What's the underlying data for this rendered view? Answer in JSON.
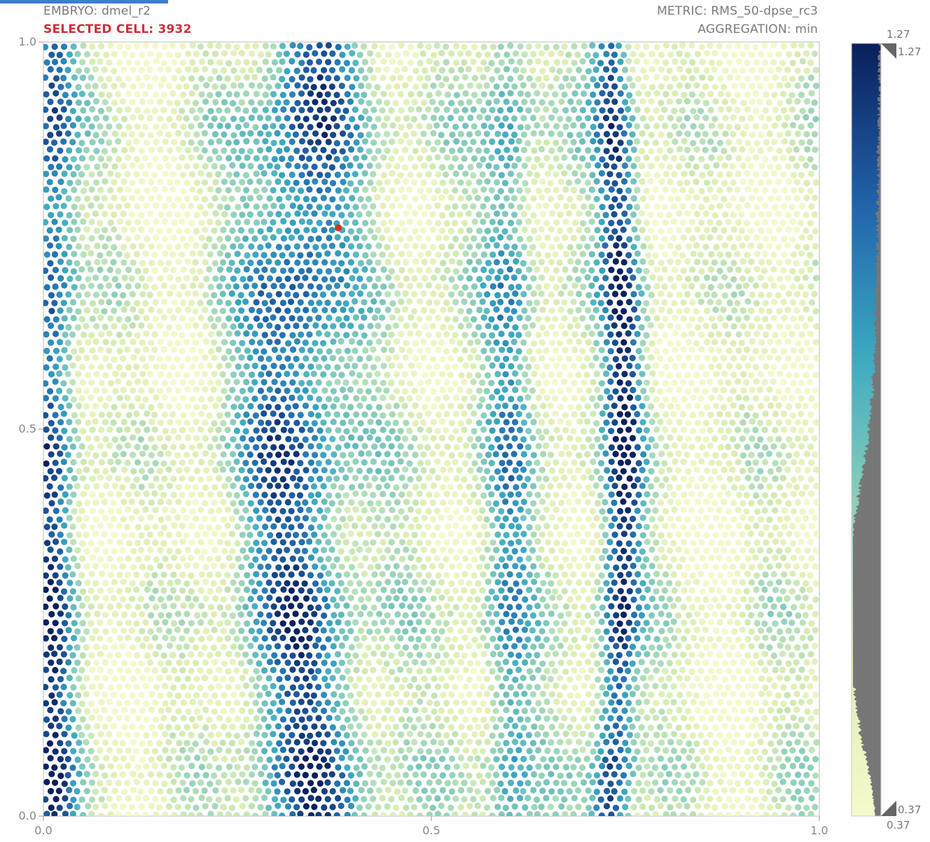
{
  "header": {
    "embryo": "EMBRYO: dmel_r2",
    "selected_cell": "SELECTED CELL: 3932",
    "metric": "METRIC: RMS_50-dpse_rc3",
    "aggregation": "AGGREGATION: min"
  },
  "colors": {
    "low": "#f4f7c6",
    "mid": "#3aa8c0",
    "high": "#081d58",
    "selected": "#d7301f",
    "histogram": "#777777"
  },
  "chart_data": {
    "type": "scatter",
    "title": "",
    "xlabel": "",
    "ylabel": "",
    "xlim": [
      0.0,
      1.0
    ],
    "ylim": [
      0.0,
      1.0
    ],
    "x_ticks": [
      "0.0",
      "0.5",
      "1.0"
    ],
    "y_ticks": [
      "0.0",
      "0.5",
      "1.0"
    ],
    "colorscale": "YlGnBu",
    "color_range": [
      0.37,
      1.27
    ],
    "colorbar": {
      "top_label": "1.27",
      "top_marker_label": "1.27",
      "bottom_label": "0.37",
      "bottom_marker_label": "0.37"
    },
    "selected_cell": {
      "id": 3932,
      "x": 0.38,
      "y": 0.76
    },
    "bands": [
      {
        "x_center": 0.01,
        "width": 0.03,
        "value": 1.15
      },
      {
        "x_center": 0.14,
        "width": 0.07,
        "value": 0.45
      },
      {
        "x_center": 0.35,
        "width": 0.07,
        "value": 1.1
      },
      {
        "x_center": 0.6,
        "width": 0.03,
        "value": 0.9
      },
      {
        "x_center": 0.73,
        "width": 0.025,
        "value": 1.2
      },
      {
        "x_center": 0.88,
        "width": 0.07,
        "value": 0.45
      }
    ],
    "grid": false,
    "legend": "colorbar-right"
  }
}
